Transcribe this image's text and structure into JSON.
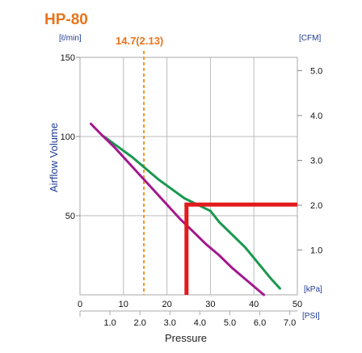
{
  "title": "HP-80",
  "chart_data": {
    "type": "line",
    "title": "HP-80",
    "ylabel": "Airflow Volume",
    "xlabel": "Pressure",
    "left_unit": "[ℓ/min]",
    "right_unit": "[CFM]",
    "bottom_unit": "[kPa]",
    "psi_unit": "[PSI]",
    "xlim": [
      0,
      50
    ],
    "ylim": [
      0,
      150
    ],
    "x_ticks": [
      10,
      20,
      30,
      40,
      50
    ],
    "x_tick_labels": [
      "10",
      "20",
      "30",
      "40",
      "50"
    ],
    "x_zero_label": "0",
    "y_ticks": [
      50,
      100,
      150
    ],
    "y_tick_labels": [
      "50",
      "100",
      "150"
    ],
    "cfm_ticks": [
      1.0,
      2.0,
      3.0,
      4.0,
      5.0
    ],
    "cfm_tick_labels": [
      "1.0",
      "2.0",
      "3.0",
      "4.0",
      "5.0"
    ],
    "psi_ticks": [
      1.0,
      2.0,
      3.0,
      4.0,
      5.0,
      6.0,
      7.0
    ],
    "psi_tick_labels": [
      "1.0",
      "2.0",
      "3.0",
      "4.0",
      "5.0",
      "6.0",
      "7.0"
    ],
    "grid": true,
    "series": [
      {
        "color": "#1a9850",
        "x": [
          5.5,
          9,
          12,
          15,
          18,
          21,
          24,
          27,
          30,
          32,
          35,
          38,
          41,
          44,
          46
        ],
        "y": [
          100,
          93,
          87,
          80,
          73,
          67,
          61,
          57,
          53,
          46,
          38,
          30,
          20,
          10,
          4
        ]
      },
      {
        "color": "#a3188e",
        "x": [
          2.5,
          5,
          8,
          11,
          14,
          17,
          20,
          23,
          26,
          29,
          32,
          35,
          38,
          41,
          42.3
        ],
        "y": [
          108,
          101,
          93,
          84,
          75,
          66,
          57,
          48,
          40,
          32,
          25,
          17,
          10,
          3,
          0
        ]
      }
    ],
    "annotation": {
      "label": "14.7(2.13)",
      "x": 14.7,
      "color": "#f0961e"
    },
    "operating_point": {
      "x": 24.5,
      "y": 57,
      "color": "#e31a1c"
    }
  }
}
